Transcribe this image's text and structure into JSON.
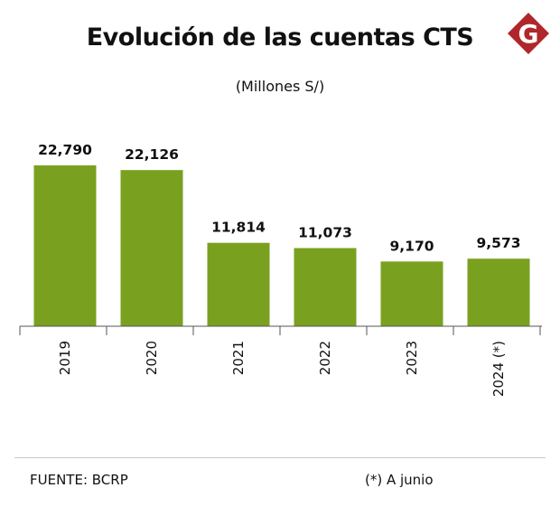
{
  "header": {
    "title": "Evolución de las cuentas CTS",
    "subtitle": "(Millones S/)",
    "logo_letter": "G"
  },
  "colors": {
    "bar": "#79a11f",
    "axis": "#555555",
    "logo_red": "#b0272b"
  },
  "chart_data": {
    "type": "bar",
    "categories": [
      "2019",
      "2020",
      "2021",
      "2022",
      "2023",
      "2024 (*)"
    ],
    "values": [
      22790,
      22126,
      11814,
      11073,
      9170,
      9573
    ],
    "value_labels": [
      "22,790",
      "22,126",
      "11,814",
      "11,073",
      "9,170",
      "9,573"
    ],
    "title": "Evolución de las cuentas CTS",
    "subtitle": "(Millones S/)",
    "xlabel": "",
    "ylabel": "",
    "ylim": [
      0,
      22790
    ],
    "grid": false,
    "legend": "none"
  },
  "footer": {
    "source": "FUENTE: BCRP",
    "note": "(*) A junio"
  }
}
